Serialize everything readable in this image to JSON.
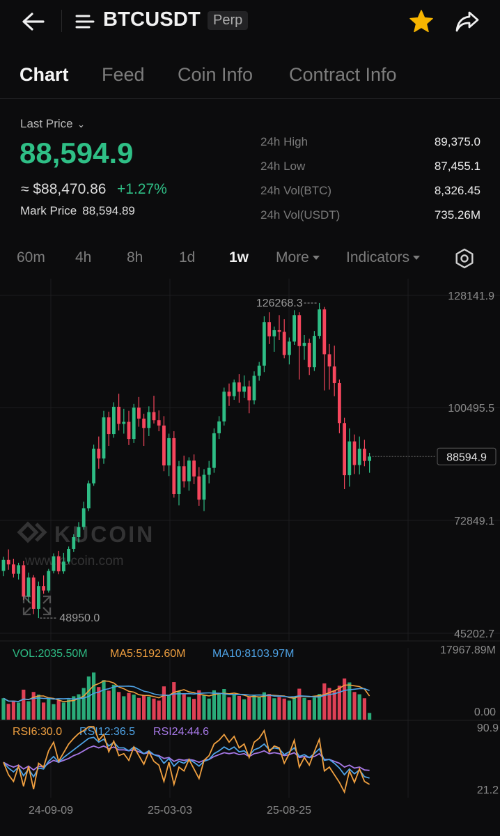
{
  "header": {
    "symbol": "BTCUSDT",
    "badge": "Perp",
    "back_icon": "arrow-left-icon",
    "menu_icon": "menu-lines-icon",
    "favorite_icon": "star-icon",
    "share_icon": "share-icon",
    "favorite_color": "#f7b500"
  },
  "tabs": [
    {
      "label": "Chart",
      "active": true
    },
    {
      "label": "Feed",
      "active": false
    },
    {
      "label": "Coin Info",
      "active": false
    },
    {
      "label": "Contract Info",
      "active": false
    }
  ],
  "ticker": {
    "last_price_label": "Last Price",
    "last_price": "88,594.9",
    "approx_usd": "≈ $88,470.86",
    "change_pct": "+1.27%",
    "mark_price_label": "Mark Price",
    "mark_price": "88,594.89",
    "up_color": "#2fbf86",
    "stats": [
      {
        "label": "24h High",
        "value": "89,375.0"
      },
      {
        "label": "24h Low",
        "value": "87,455.1"
      },
      {
        "label": "24h Vol(BTC)",
        "value": "8,326.45"
      },
      {
        "label": "24h Vol(USDT)",
        "value": "735.26M"
      }
    ]
  },
  "intervals": {
    "items": [
      "60m",
      "4h",
      "8h",
      "1d",
      "1w"
    ],
    "active": "1w",
    "more_label": "More",
    "indicators_label": "Indicators",
    "settings_icon": "settings-gear-icon"
  },
  "watermark": {
    "brand": "KUCOIN",
    "url": "www.kucoin.com"
  },
  "fullscreen_icon": "expand-icon",
  "chart_data": {
    "type": "candlestick",
    "interval": "1w",
    "price_axis_ticks": [
      "128141.9",
      "100495.5",
      "72849.1",
      "45202.7"
    ],
    "ylim": [
      45202.7,
      128141.9
    ],
    "high_marker": "126268.3",
    "low_marker": "48950.0",
    "high_value": 126268.3,
    "low_value": 48950.0,
    "last_price_value": 88594.9,
    "last_price_label": "88594.9",
    "x_ticks": [
      "24-09-09",
      "25-03-03",
      "25-08-25"
    ],
    "up_color": "#2ebd85",
    "down_color": "#f6465d",
    "candles": [
      [
        60500,
        64000,
        59200,
        63200
      ],
      [
        63200,
        65800,
        60800,
        62100
      ],
      [
        62100,
        63500,
        58900,
        59800
      ],
      [
        59800,
        62500,
        58400,
        61900
      ],
      [
        61900,
        63000,
        53400,
        54200
      ],
      [
        54200,
        60100,
        52800,
        58900
      ],
      [
        58900,
        59500,
        49900,
        51200
      ],
      [
        51200,
        57900,
        48950,
        56800
      ],
      [
        56800,
        59400,
        54900,
        55700
      ],
      [
        55700,
        61000,
        55200,
        60500
      ],
      [
        60500,
        64800,
        59900,
        64100
      ],
      [
        64100,
        65400,
        59700,
        60400
      ],
      [
        60400,
        64900,
        59800,
        62800
      ],
      [
        62800,
        66500,
        62300,
        65900
      ],
      [
        65900,
        69500,
        65200,
        68800
      ],
      [
        68800,
        72500,
        67500,
        71300
      ],
      [
        71300,
        77500,
        70600,
        75900
      ],
      [
        75900,
        82700,
        75200,
        82000
      ],
      [
        82000,
        91500,
        81400,
        90500
      ],
      [
        90500,
        93500,
        85600,
        88100
      ],
      [
        88100,
        99800,
        86800,
        98200
      ],
      [
        98200,
        99600,
        91200,
        94100
      ],
      [
        94100,
        101900,
        93200,
        100800
      ],
      [
        100800,
        104000,
        95000,
        96600
      ],
      [
        96600,
        100300,
        94200,
        97100
      ],
      [
        97100,
        99800,
        91400,
        92900
      ],
      [
        92900,
        101500,
        91900,
        100600
      ],
      [
        100600,
        103200,
        95900,
        97900
      ],
      [
        97900,
        99100,
        91200,
        95600
      ],
      [
        95600,
        100900,
        93600,
        99500
      ],
      [
        99500,
        103500,
        96700,
        97500
      ],
      [
        97500,
        99900,
        94800,
        96200
      ],
      [
        96200,
        98500,
        85000,
        86400
      ],
      [
        86400,
        94200,
        83800,
        93100
      ],
      [
        93100,
        94800,
        78500,
        79400
      ],
      [
        79400,
        87500,
        76600,
        86200
      ],
      [
        86200,
        88800,
        81000,
        82500
      ],
      [
        82500,
        88400,
        80200,
        87600
      ],
      [
        87600,
        89100,
        81800,
        83700
      ],
      [
        83700,
        86000,
        76500,
        78000
      ],
      [
        78000,
        85500,
        75200,
        84100
      ],
      [
        84100,
        87500,
        82000,
        85800
      ],
      [
        85800,
        95500,
        84600,
        94300
      ],
      [
        94300,
        98500,
        92900,
        97200
      ],
      [
        97200,
        105500,
        96200,
        104500
      ],
      [
        104500,
        106500,
        101000,
        103400
      ],
      [
        103400,
        107500,
        102500,
        106800
      ],
      [
        106800,
        108800,
        101800,
        104500
      ],
      [
        104500,
        108500,
        103000,
        105800
      ],
      [
        105800,
        107200,
        99200,
        102400
      ],
      [
        102400,
        109500,
        101400,
        108400
      ],
      [
        108400,
        111800,
        107200,
        110900
      ],
      [
        110900,
        123000,
        109300,
        121600
      ],
      [
        121600,
        124000,
        116200,
        118100
      ],
      [
        118100,
        120500,
        114300,
        119600
      ],
      [
        119600,
        123300,
        117200,
        119200
      ],
      [
        119200,
        122300,
        112700,
        113500
      ],
      [
        113500,
        117800,
        111200,
        116800
      ],
      [
        116800,
        124500,
        116000,
        123300
      ],
      [
        123300,
        124000,
        107500,
        115700
      ],
      [
        115700,
        118400,
        112300,
        116500
      ],
      [
        116500,
        117500,
        108600,
        110500
      ],
      [
        110500,
        119400,
        109600,
        118200
      ],
      [
        118200,
        126268,
        117500,
        124700
      ],
      [
        124700,
        125300,
        104800,
        113700
      ],
      [
        113700,
        116200,
        105000,
        110700
      ],
      [
        110700,
        115800,
        103400,
        106600
      ],
      [
        106600,
        107500,
        94300,
        96800
      ],
      [
        96800,
        98100,
        80600,
        84000
      ],
      [
        84000,
        95500,
        81200,
        92300
      ],
      [
        92300,
        94000,
        84300,
        86500
      ],
      [
        86500,
        93500,
        84200,
        90500
      ],
      [
        90500,
        92700,
        86200,
        87500
      ],
      [
        87500,
        89500,
        84600,
        88594.9
      ]
    ],
    "volume": {
      "label": "VOL:2035.50M",
      "ma5_label": "MA5:5192.60M",
      "ma10_label": "MA10:8103.97M",
      "axis_max": "17967.89M",
      "axis_min": "0.00",
      "max_value": 17967.89,
      "ma5_color": "#f0a040",
      "ma10_color": "#4ea3e6",
      "values": [
        6500,
        4800,
        5600,
        5200,
        9100,
        5600,
        8400,
        7600,
        5200,
        6300,
        4700,
        5900,
        5200,
        6100,
        7100,
        7700,
        9600,
        13100,
        14300,
        9900,
        12000,
        8800,
        10600,
        8400,
        7100,
        8100,
        7600,
        6600,
        7400,
        7000,
        6400,
        5800,
        10100,
        7600,
        11400,
        8600,
        7700,
        6900,
        6300,
        8900,
        7500,
        6400,
        8900,
        7800,
        9300,
        6800,
        7600,
        7200,
        6200,
        6900,
        7400,
        6800,
        8300,
        7800,
        6500,
        6900,
        6400,
        5800,
        7000,
        9400,
        6600,
        5900,
        6700,
        7800,
        11000,
        9600,
        8900,
        10300,
        12500,
        11300,
        8400,
        7700,
        6500,
        2035
      ]
    },
    "rsi": {
      "rsi6_label": "RSI6:30.0",
      "rsi12_label": "RSI12:36.5",
      "rsi24_label": "RSI24:44.6",
      "axis_max": "90.9",
      "axis_min": "21.2",
      "ylim": [
        21.2,
        90.9
      ],
      "rsi6_color": "#f0a040",
      "rsi12_color": "#4ea3e6",
      "rsi24_color": "#a678e6",
      "rsi6": [
        53,
        40,
        33,
        49,
        28,
        49,
        25,
        52,
        48,
        65,
        74,
        54,
        63,
        72,
        78,
        83,
        86,
        90,
        90,
        76,
        82,
        64,
        75,
        60,
        62,
        55,
        69,
        60,
        51,
        64,
        54,
        50,
        33,
        53,
        30,
        48,
        44,
        56,
        46,
        36,
        55,
        60,
        72,
        76,
        82,
        74,
        80,
        68,
        72,
        58,
        74,
        78,
        86,
        64,
        70,
        68,
        52,
        62,
        76,
        48,
        58,
        50,
        64,
        77,
        44,
        48,
        40,
        32,
        22,
        44,
        32,
        46,
        33,
        30
      ],
      "rsi12": [
        53,
        47,
        43,
        48,
        39,
        46,
        38,
        47,
        46,
        54,
        59,
        53,
        58,
        62,
        66,
        70,
        74,
        78,
        79,
        74,
        77,
        70,
        74,
        68,
        68,
        65,
        69,
        66,
        62,
        65,
        61,
        59,
        52,
        57,
        49,
        54,
        52,
        56,
        53,
        49,
        54,
        56,
        62,
        65,
        69,
        66,
        69,
        64,
        65,
        60,
        66,
        68,
        72,
        66,
        68,
        67,
        61,
        64,
        68,
        59,
        61,
        58,
        62,
        67,
        55,
        56,
        52,
        47,
        40,
        46,
        41,
        45,
        38,
        36.5
      ],
      "rsi24": [
        53,
        50,
        48,
        50,
        46,
        49,
        45,
        49,
        48,
        52,
        55,
        53,
        55,
        57,
        60,
        62,
        65,
        68,
        70,
        68,
        70,
        67,
        69,
        66,
        66,
        65,
        66,
        64,
        62,
        63,
        61,
        60,
        57,
        58,
        54,
        56,
        55,
        56,
        55,
        53,
        55,
        56,
        59,
        61,
        63,
        62,
        63,
        61,
        62,
        59,
        62,
        63,
        65,
        62,
        63,
        62,
        60,
        61,
        63,
        58,
        59,
        58,
        59,
        62,
        56,
        56,
        54,
        52,
        48,
        50,
        47,
        48,
        45,
        44.6
      ]
    }
  }
}
